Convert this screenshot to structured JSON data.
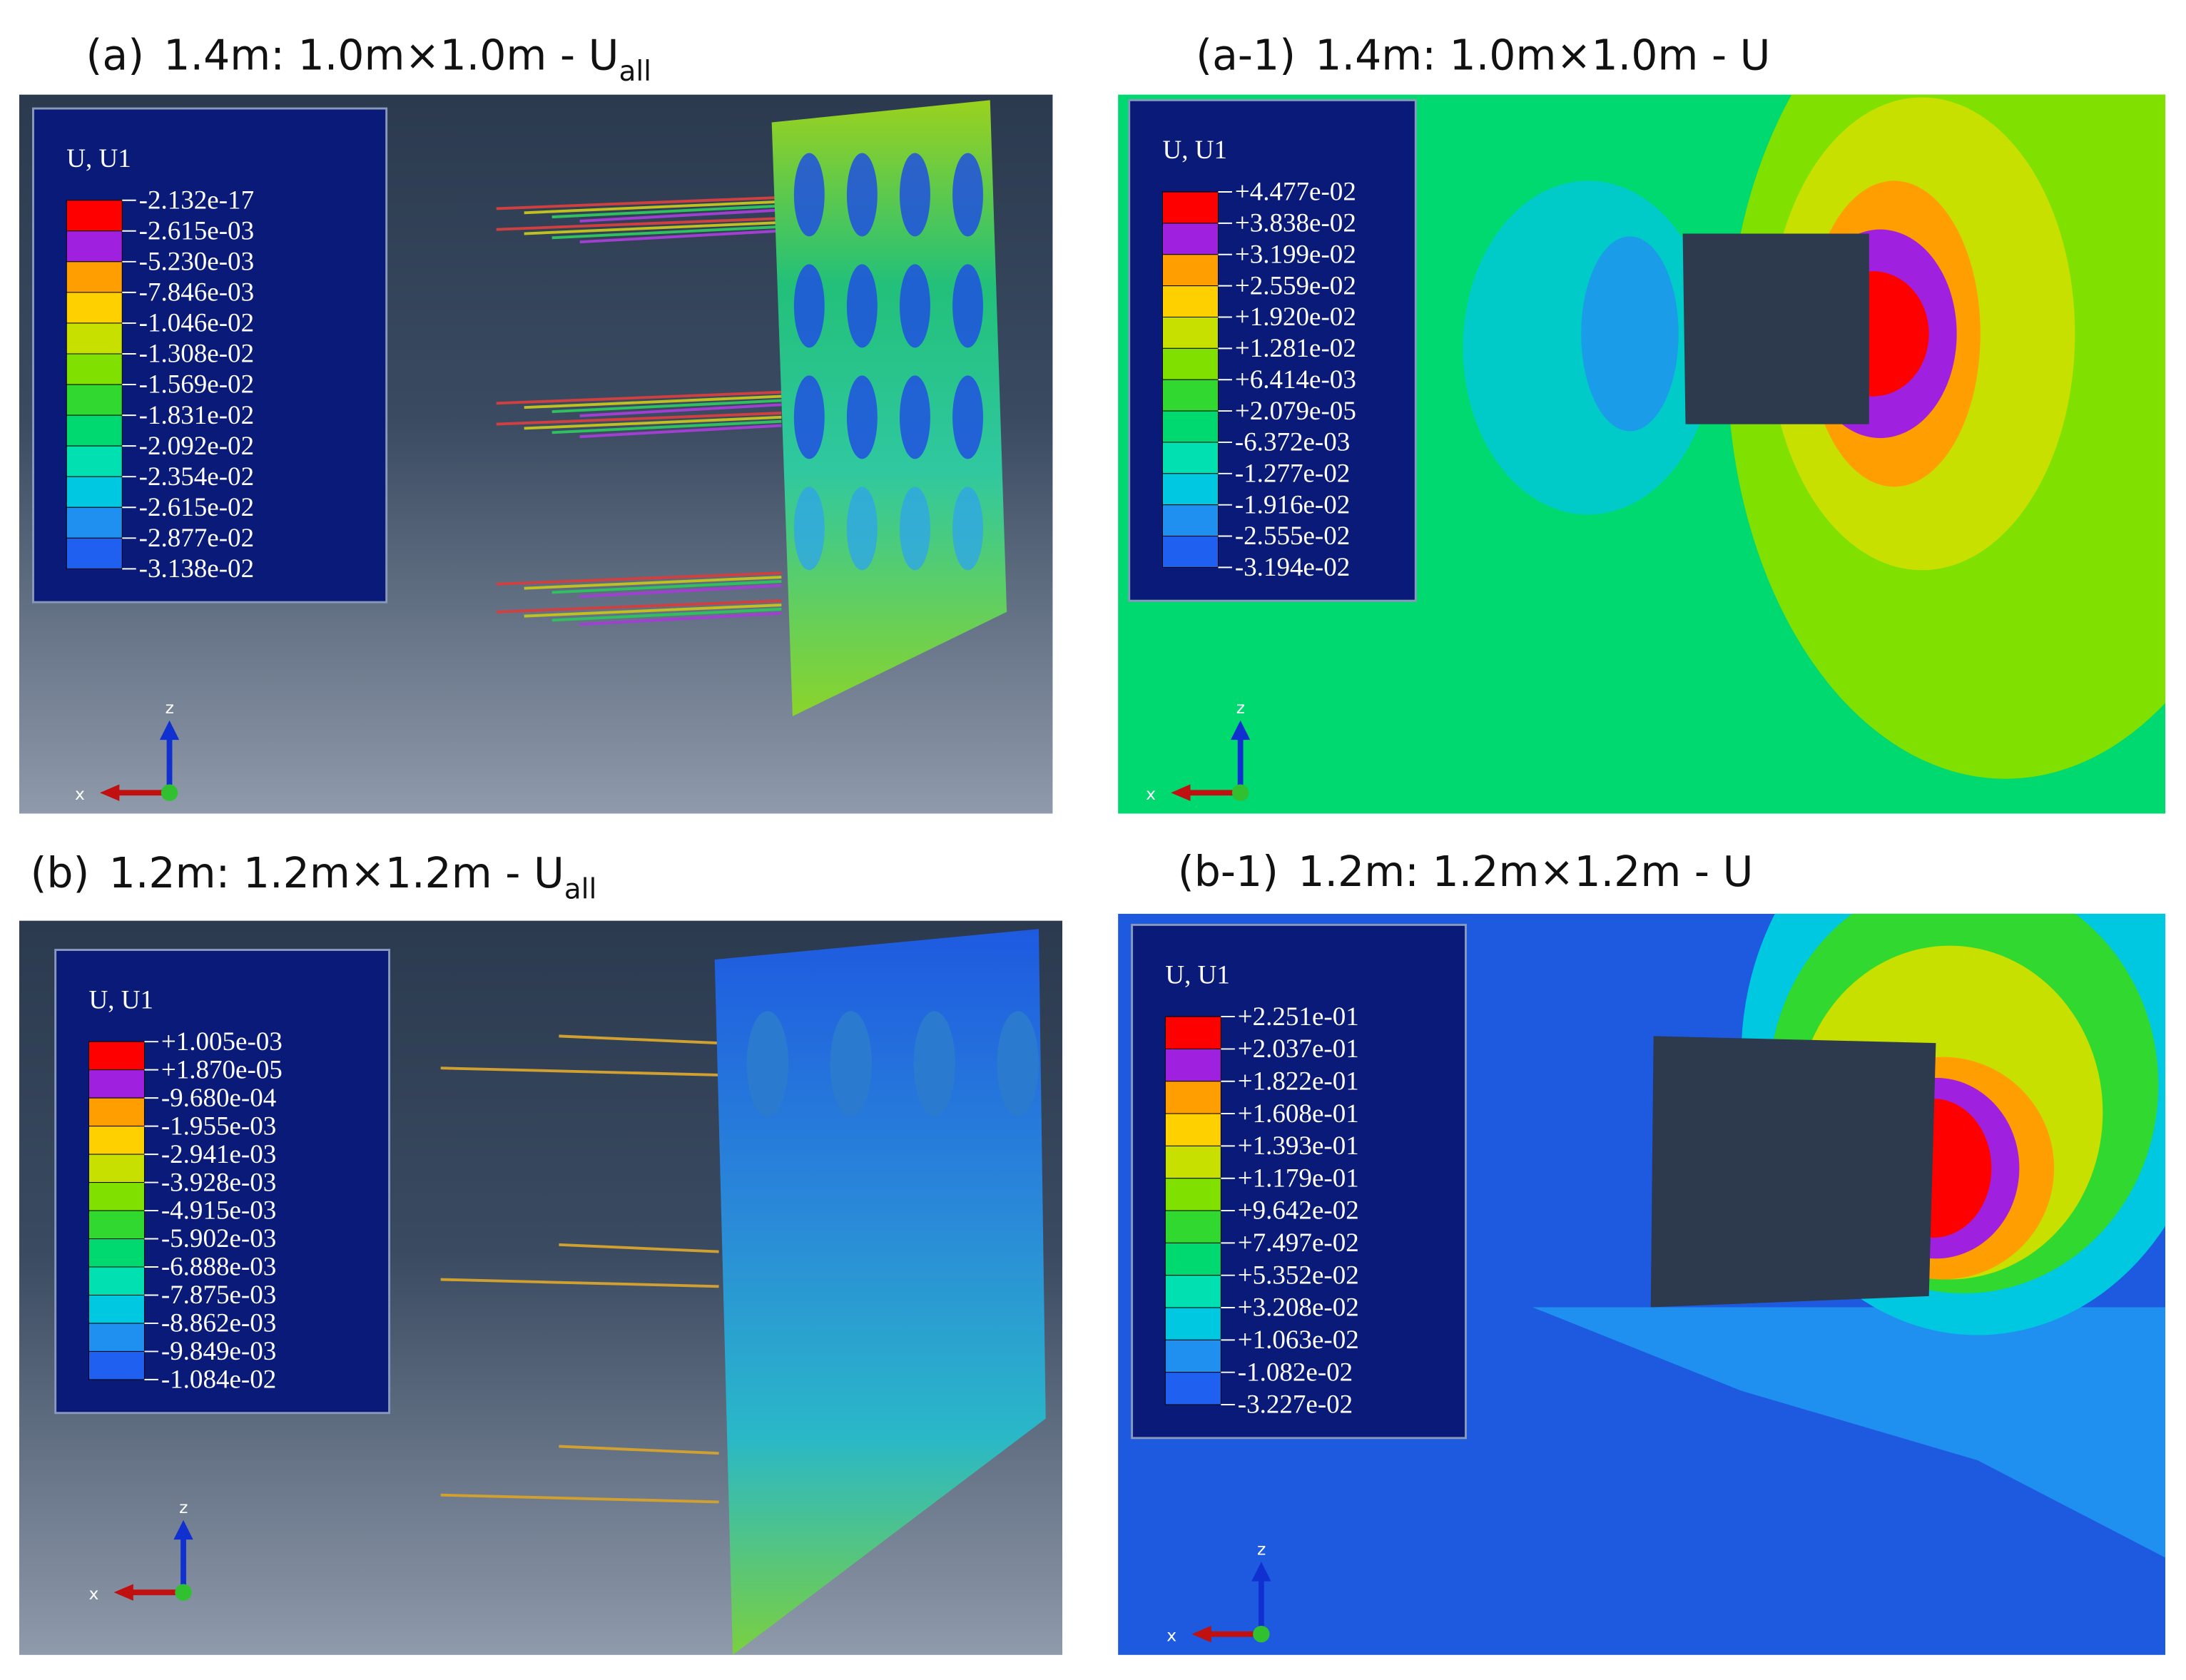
{
  "panels": [
    {
      "label": "(a)",
      "title": "1.4m: 1.0m×1.0m - U",
      "subscript": "all",
      "legend": {
        "title": "U, U1",
        "values": [
          "-2.132e-17",
          "-2.615e-03",
          "-5.230e-03",
          "-7.846e-03",
          "-1.046e-02",
          "-1.308e-02",
          "-1.569e-02",
          "-1.831e-02",
          "-2.092e-02",
          "-2.354e-02",
          "-2.615e-02",
          "-2.877e-02",
          "-3.138e-02"
        ]
      },
      "axes": {
        "z": "z",
        "x": "x"
      }
    },
    {
      "label": "(a-1)",
      "title": "1.4m: 1.0m×1.0m -  U",
      "legend": {
        "title": "U, U1",
        "values": [
          "+4.477e-02",
          "+3.838e-02",
          "+3.199e-02",
          "+2.559e-02",
          "+1.920e-02",
          "+1.281e-02",
          "+6.414e-03",
          "+2.079e-05",
          "-6.372e-03",
          "-1.277e-02",
          "-1.916e-02",
          "-2.555e-02",
          "-3.194e-02"
        ]
      },
      "axes": {
        "z": "z",
        "x": "x"
      }
    },
    {
      "label": "(b)",
      "title": "1.2m: 1.2m×1.2m - U",
      "subscript": "all",
      "legend": {
        "title": "U, U1",
        "values": [
          "+1.005e-03",
          "+1.870e-05",
          "-9.680e-04",
          "-1.955e-03",
          "-2.941e-03",
          "-3.928e-03",
          "-4.915e-03",
          "-5.902e-03",
          "-6.888e-03",
          "-7.875e-03",
          "-8.862e-03",
          "-9.849e-03",
          "-1.084e-02"
        ]
      },
      "axes": {
        "z": "z",
        "x": "x"
      }
    },
    {
      "label": "(b-1)",
      "title": "1.2m: 1.2m×1.2m -  U",
      "legend": {
        "title": "U, U1",
        "values": [
          "+2.251e-01",
          "+2.037e-01",
          "+1.822e-01",
          "+1.608e-01",
          "+1.393e-01",
          "+1.179e-01",
          "+9.642e-02",
          "+7.497e-02",
          "+5.352e-02",
          "+3.208e-02",
          "+1.063e-02",
          "-1.082e-02",
          "-3.227e-02"
        ]
      },
      "axes": {
        "z": "z",
        "x": "x"
      }
    }
  ]
}
